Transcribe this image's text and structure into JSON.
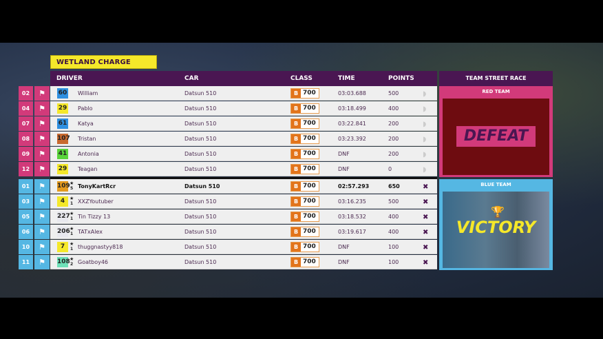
{
  "event_title": "WETLAND CHARGE",
  "headers": {
    "driver": "DRIVER",
    "car": "CAR",
    "class": "CLASS",
    "time": "TIME",
    "points": "POINTS",
    "side": "TEAM STREET RACE"
  },
  "red_team": {
    "label": "RED TEAM",
    "result": "DEFEAT",
    "color": "#d23a7a",
    "rows": [
      {
        "pos": "02",
        "rating": "60",
        "rating_color": "#2e8fe0",
        "name": "William",
        "car": "Datsun 510",
        "class": "B",
        "pi": "700",
        "time": "03:03.688",
        "points": "500"
      },
      {
        "pos": "04",
        "rating": "29",
        "rating_color": "#f5e82a",
        "name": "Pablo",
        "car": "Datsun 510",
        "class": "B",
        "pi": "700",
        "time": "03:18.499",
        "points": "400"
      },
      {
        "pos": "07",
        "rating": "61",
        "rating_color": "#2e8fe0",
        "name": "Katya",
        "car": "Datsun 510",
        "class": "B",
        "pi": "700",
        "time": "03:22.841",
        "points": "200"
      },
      {
        "pos": "08",
        "rating": "107",
        "rating_color": "#c8692e",
        "name": "Tristan",
        "car": "Datsun 510",
        "class": "B",
        "pi": "700",
        "time": "03:23.392",
        "points": "200"
      },
      {
        "pos": "09",
        "rating": "41",
        "rating_color": "#59d43b",
        "name": "Antonia",
        "car": "Datsun 510",
        "class": "B",
        "pi": "700",
        "time": "DNF",
        "points": "200"
      },
      {
        "pos": "12",
        "rating": "29",
        "rating_color": "#f5e82a",
        "name": "Teagan",
        "car": "Datsun 510",
        "class": "B",
        "pi": "700",
        "time": "DNF",
        "points": "0"
      }
    ]
  },
  "blue_team": {
    "label": "BLUE TEAM",
    "result": "VICTORY",
    "color": "#55b7e3",
    "rows": [
      {
        "pos": "01",
        "rating": "109",
        "rating_color": "#e49a1e",
        "stars": "5",
        "name": "TonyKartRcr",
        "car": "Datsun 510",
        "class": "B",
        "pi": "700",
        "time": "02:57.293",
        "points": "650",
        "bold": true
      },
      {
        "pos": "03",
        "rating": "4",
        "rating_color": "#f5e82a",
        "stars": "1",
        "name": "XXZYoutuber",
        "car": "Datsun 510",
        "class": "B",
        "pi": "700",
        "time": "03:16.235",
        "points": "500"
      },
      {
        "pos": "05",
        "rating": "227",
        "rating_color": "#e8e8ee",
        "stars": "1",
        "name": "Tin Tizzy 13",
        "car": "Datsun 510",
        "class": "B",
        "pi": "700",
        "time": "03:18.532",
        "points": "400"
      },
      {
        "pos": "06",
        "rating": "206",
        "rating_color": "#e8e8ee",
        "stars": "1",
        "name": "TATxAlex",
        "car": "Datsun 510",
        "class": "B",
        "pi": "700",
        "time": "03:19.617",
        "points": "400"
      },
      {
        "pos": "10",
        "rating": "7",
        "rating_color": "#f5e82a",
        "stars": "1",
        "name": "thuggnastyy818",
        "car": "Datsun 510",
        "class": "B",
        "pi": "700",
        "time": "DNF",
        "points": "100"
      },
      {
        "pos": "11",
        "rating": "108",
        "rating_color": "#6ee0b8",
        "stars": "2",
        "name": "Goatboy46",
        "car": "Datsun 510",
        "class": "B",
        "pi": "700",
        "time": "DNF",
        "points": "100"
      }
    ]
  }
}
